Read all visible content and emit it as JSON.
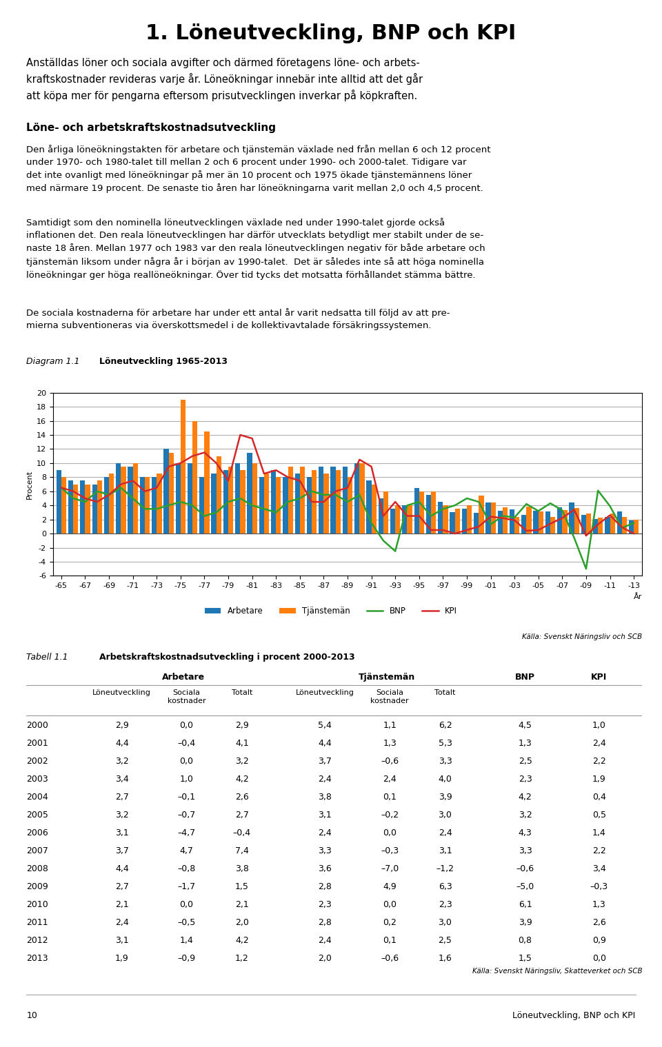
{
  "page": {
    "title": "1. Löneutveckling, BNP och KPI",
    "intro": "Anställdas löner och sociala avgifter och därmed företagens löne- och arbets-\nkraftskostnader revideras varje år. Löneökningar innebär inte alltid att det går\natt köpa mer för pengarna eftersom prisutvecklingen inverkar på köpkraften.",
    "heading": "Löne- och arbetskraftskostnadsutveckling",
    "body": [
      "Den årliga löneökningstakten för arbetare och tjänstemän växlade ned från mellan 6 och 12 procent\nunder 1970- och 1980-talet till mellan 2 och 6 procent under 1990- och 2000-talet. Tidigare var\ndet inte ovanligt med löneökningar på mer än 10 procent och 1975 ökade tjänstemännens löner\nmed närmare 19 procent. De senaste tio åren har löneökningarna varit mellan 2,0 och 4,5 procent.",
      "Samtidigt som den nominella löneutvecklingen växlade ned under 1990-talet gjorde också\ninflationen det. Den reala löneutvecklingen har därför utvecklats betydligt mer stabilt under de se-\nnaste 18 åren. Mellan 1977 och 1983 var den reala löneutvecklingen negativ för både arbetare och\ntjänstemän liksom under några år i början av 1990-talet.  Det är således inte så att höga nominella\nlöneökningar ger höga reallöneökningar. Över tid tycks det motsatta förhållandet stämma bättre.",
      "De sociala kostnaderna för arbetare har under ett antal år varit nedsatta till följd av att pre-\nmierna subventioneras via överskottsmedel i de kollektivavtalade försäkringssystemen."
    ],
    "footer": [
      "10",
      "Löneutveckling, BNP och KPI"
    ]
  },
  "chart_data": [
    {
      "type": "bar",
      "label": "Diagram 1.1",
      "title": "Löneutveckling 1965-2013",
      "xlabel": "År",
      "ylabel": "Procent",
      "source": "Källa: Svenskt Näringsliv och SCB",
      "categories": [
        "-65",
        null,
        "-67",
        null,
        "-69",
        null,
        "-71",
        null,
        "-73",
        null,
        "-75",
        null,
        "-77",
        null,
        "-79",
        null,
        "-81",
        null,
        "-83",
        null,
        "-85",
        null,
        "-87",
        null,
        "-89",
        null,
        "-91",
        null,
        "-93",
        null,
        "-95",
        null,
        "-97",
        null,
        "-99",
        null,
        "-01",
        null,
        "-03",
        null,
        "-05",
        null,
        "-07",
        null,
        "-09",
        null,
        "-11",
        null,
        "-13"
      ],
      "series": [
        {
          "name": "Arbetare",
          "type": "bar",
          "values": [
            9.0,
            7.5,
            7.5,
            7.0,
            8.0,
            10.0,
            9.5,
            8.0,
            8.0,
            12.0,
            10.0,
            10.0,
            8.0,
            8.5,
            9.0,
            10.0,
            11.5,
            8.0,
            9.0,
            8.0,
            8.5,
            8.0,
            9.5,
            9.5,
            9.5,
            10.0,
            7.5,
            5.0,
            3.5,
            4.0,
            6.5,
            5.5,
            4.5,
            3.0,
            3.5,
            2.9,
            4.4,
            3.2,
            3.4,
            2.7,
            3.2,
            3.1,
            3.7,
            4.4,
            2.7,
            2.1,
            2.4,
            3.1,
            1.9
          ]
        },
        {
          "name": "Tjänstemän",
          "type": "bar",
          "values": [
            8.0,
            7.0,
            7.0,
            7.5,
            8.5,
            9.5,
            10.0,
            8.0,
            8.5,
            11.5,
            19.0,
            16.0,
            14.5,
            11.0,
            9.5,
            9.0,
            10.0,
            8.5,
            8.0,
            9.5,
            9.5,
            9.0,
            8.5,
            9.0,
            8.0,
            10.0,
            7.0,
            6.0,
            4.0,
            4.0,
            6.0,
            6.0,
            4.0,
            3.5,
            4.0,
            5.4,
            4.4,
            3.7,
            2.4,
            3.8,
            3.1,
            2.4,
            3.3,
            3.6,
            2.8,
            2.3,
            2.8,
            2.4,
            2.0
          ]
        },
        {
          "name": "BNP",
          "type": "line",
          "values": [
            6.5,
            5.0,
            4.5,
            6.0,
            5.5,
            6.5,
            5.0,
            3.5,
            3.5,
            4.0,
            4.5,
            4.0,
            2.5,
            3.0,
            4.5,
            5.0,
            4.0,
            3.5,
            3.0,
            4.5,
            5.0,
            6.0,
            5.5,
            5.5,
            4.5,
            5.5,
            1.5,
            -1.0,
            -2.5,
            4.0,
            4.5,
            2.5,
            3.5,
            4.0,
            5.0,
            4.5,
            1.3,
            2.5,
            2.3,
            4.2,
            3.2,
            4.3,
            3.3,
            -0.6,
            -5.0,
            6.1,
            3.9,
            0.8,
            1.5
          ]
        },
        {
          "name": "KPI",
          "type": "line",
          "values": [
            6.5,
            6.0,
            5.0,
            4.5,
            5.5,
            7.0,
            7.5,
            6.0,
            6.5,
            9.5,
            10.0,
            11.0,
            11.5,
            10.0,
            7.5,
            14.0,
            13.5,
            8.5,
            9.0,
            8.0,
            7.5,
            4.5,
            4.5,
            6.0,
            6.5,
            10.5,
            9.5,
            2.5,
            4.5,
            2.5,
            2.5,
            0.5,
            0.5,
            0.0,
            0.5,
            1.0,
            2.4,
            2.2,
            1.9,
            0.4,
            0.5,
            1.4,
            2.2,
            3.4,
            -0.3,
            1.3,
            2.6,
            0.9,
            0.0
          ]
        }
      ],
      "ylim": [
        -6,
        20
      ],
      "yticks": [
        -6,
        -4,
        -2,
        0,
        2,
        4,
        6,
        8,
        10,
        12,
        14,
        16,
        18,
        20
      ],
      "grid": true,
      "legend": "lower center"
    },
    {
      "type": "table",
      "label": "Tabell 1.1",
      "title": "Arbetskraftskostnadsutveckling i procent 2000-2013",
      "source": "Källa: Svenskt Näringsliv, Skatteverket och SCB",
      "categories": [
        2000,
        2001,
        2002,
        2003,
        2004,
        2005,
        2006,
        2007,
        2008,
        2009,
        2010,
        2011,
        2012,
        2013
      ],
      "groups": [
        {
          "name": "Arbetare",
          "series": [
            {
              "name": "Löneutveckling",
              "values": [
                2.9,
                4.4,
                3.2,
                3.4,
                2.7,
                3.2,
                3.1,
                3.7,
                4.4,
                2.7,
                2.1,
                2.4,
                3.1,
                1.9
              ],
              "value_labels": [
                "2,9",
                "4,4",
                "3,2",
                "3,4",
                "2,7",
                "3,2",
                "3,1",
                "3,7",
                "4,4",
                "2,7",
                "2,1",
                "2,4",
                "3,1",
                "1,9"
              ]
            },
            {
              "name": "Sociala\nkostnader",
              "values": [
                0.0,
                -0.4,
                0.0,
                1.0,
                -0.1,
                -0.7,
                -4.7,
                4.7,
                -0.8,
                -1.7,
                0.0,
                -0.5,
                1.4,
                -0.9
              ],
              "value_labels": [
                "0,0",
                "–0,4",
                "0,0",
                "1,0",
                "–0,1",
                "–0,7",
                "–4,7",
                "4,7",
                "–0,8",
                "–1,7",
                "0,0",
                "–0,5",
                "1,4",
                "–0,9"
              ]
            },
            {
              "name": "Totalt",
              "values": [
                2.9,
                4.1,
                3.2,
                4.2,
                2.6,
                2.7,
                -0.4,
                7.4,
                3.8,
                1.5,
                2.1,
                2.0,
                4.2,
                1.2
              ],
              "value_labels": [
                "2,9",
                "4,1",
                "3,2",
                "4,2",
                "2,6",
                "2,7",
                "–0,4",
                "7,4",
                "3,8",
                "1,5",
                "2,1",
                "2,0",
                "4,2",
                "1,2"
              ]
            }
          ]
        },
        {
          "name": "Tjänstemän",
          "series": [
            {
              "name": "Löneutveckling",
              "values": [
                5.4,
                4.4,
                3.7,
                2.4,
                3.8,
                3.1,
                2.4,
                3.3,
                3.6,
                2.8,
                2.3,
                2.8,
                2.4,
                2.0
              ],
              "value_labels": [
                "5,4",
                "4,4",
                "3,7",
                "2,4",
                "3,8",
                "3,1",
                "2,4",
                "3,3",
                "3,6",
                "2,8",
                "2,3",
                "2,8",
                "2,4",
                "2,0"
              ]
            },
            {
              "name": "Sociala\nkostnader",
              "values": [
                1.1,
                1.3,
                -0.6,
                2.4,
                0.1,
                -0.2,
                0.0,
                -0.3,
                -7.0,
                4.9,
                0.0,
                0.2,
                0.1,
                -0.6
              ],
              "value_labels": [
                "1,1",
                "1,3",
                "–0,6",
                "2,4",
                "0,1",
                "–0,2",
                "0,0",
                "–0,3",
                "–7,0",
                "4,9",
                "0,0",
                "0,2",
                "0,1",
                "–0,6"
              ]
            },
            {
              "name": "Totalt",
              "values": [
                6.2,
                5.3,
                3.3,
                4.0,
                3.9,
                3.0,
                2.4,
                3.1,
                -1.2,
                6.3,
                2.3,
                3.0,
                2.5,
                1.6
              ],
              "value_labels": [
                "6,2",
                "5,3",
                "3,3",
                "4,0",
                "3,9",
                "3,0",
                "2,4",
                "3,1",
                "–1,2",
                "6,3",
                "2,3",
                "3,0",
                "2,5",
                "1,6"
              ]
            }
          ]
        },
        {
          "name": "BNP",
          "series": [
            {
              "values": [
                4.5,
                1.3,
                2.5,
                2.3,
                4.2,
                3.2,
                4.3,
                3.3,
                -0.6,
                -5.0,
                6.1,
                3.9,
                0.8,
                1.5
              ],
              "value_labels": [
                "4,5",
                "1,3",
                "2,5",
                "2,3",
                "4,2",
                "3,2",
                "4,3",
                "3,3",
                "–0,6",
                "–5,0",
                "6,1",
                "3,9",
                "0,8",
                "1,5"
              ]
            }
          ]
        },
        {
          "name": "KPI",
          "series": [
            {
              "values": [
                1.0,
                2.4,
                2.2,
                1.9,
                0.4,
                0.5,
                1.4,
                2.2,
                3.4,
                -0.3,
                1.3,
                2.6,
                0.9,
                0.0
              ],
              "value_labels": [
                "1,0",
                "2,4",
                "2,2",
                "1,9",
                "0,4",
                "0,5",
                "1,4",
                "2,2",
                "3,4",
                "–0,3",
                "1,3",
                "2,6",
                "0,9",
                "0,0"
              ]
            }
          ]
        }
      ]
    }
  ]
}
